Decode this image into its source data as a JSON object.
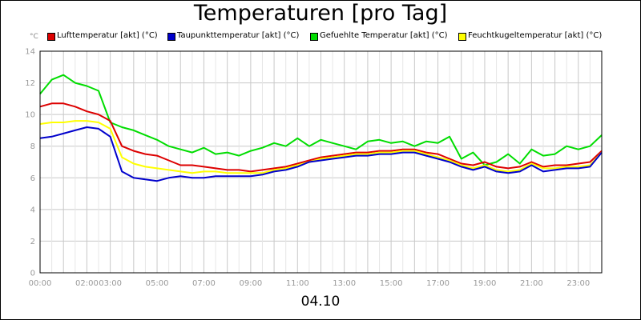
{
  "title": "Temperaturen [pro Tag]",
  "unit_label": "°C",
  "x_caption": "04.10",
  "chart_data": {
    "type": "line",
    "title": "Temperaturen [pro Tag]",
    "xlabel": "04.10",
    "ylabel": "°C",
    "ylim": [
      0,
      14
    ],
    "xlim": [
      0,
      24
    ],
    "grid": true,
    "legend_position": "top",
    "y_ticks": [
      "0",
      "2",
      "4",
      "6",
      "8",
      "10",
      "12",
      "14"
    ],
    "x_ticks": [
      {
        "x": 0,
        "label": "00:00"
      },
      {
        "x": 2,
        "label": "02:00"
      },
      {
        "x": 3,
        "label": "03:00"
      },
      {
        "x": 5,
        "label": "05:00"
      },
      {
        "x": 7,
        "label": "07:00"
      },
      {
        "x": 9,
        "label": "09:00"
      },
      {
        "x": 11,
        "label": "11:00"
      },
      {
        "x": 13,
        "label": "13:00"
      },
      {
        "x": 15,
        "label": "15:00"
      },
      {
        "x": 17,
        "label": "17:00"
      },
      {
        "x": 19,
        "label": "19:00"
      },
      {
        "x": 21,
        "label": "21:00"
      },
      {
        "x": 23,
        "label": "23:00"
      }
    ],
    "x": [
      0,
      0.5,
      1,
      1.5,
      2,
      2.5,
      3,
      3.5,
      4,
      4.5,
      5,
      5.5,
      6,
      6.5,
      7,
      7.5,
      8,
      8.5,
      9,
      9.5,
      10,
      10.5,
      11,
      11.5,
      12,
      12.5,
      13,
      13.5,
      14,
      14.5,
      15,
      15.5,
      16,
      16.5,
      17,
      17.5,
      18,
      18.5,
      19,
      19.5,
      20,
      20.5,
      21,
      21.5,
      22,
      22.5,
      23,
      23.5,
      24
    ],
    "series": [
      {
        "name": "Lufttemperatur [akt] (°C)",
        "color": "#dd0000",
        "values": [
          10.5,
          10.7,
          10.7,
          10.5,
          10.2,
          10.0,
          9.6,
          8.0,
          7.7,
          7.5,
          7.4,
          7.1,
          6.8,
          6.8,
          6.7,
          6.6,
          6.5,
          6.5,
          6.4,
          6.5,
          6.6,
          6.7,
          6.9,
          7.1,
          7.3,
          7.4,
          7.5,
          7.6,
          7.6,
          7.7,
          7.7,
          7.8,
          7.8,
          7.6,
          7.5,
          7.2,
          6.9,
          6.8,
          7.0,
          6.7,
          6.6,
          6.7,
          7.0,
          6.7,
          6.8,
          6.8,
          6.9,
          7.0,
          7.7
        ]
      },
      {
        "name": "Taupunkttemperatur [akt] (°C)",
        "color": "#0000cc",
        "values": [
          8.5,
          8.6,
          8.8,
          9.0,
          9.2,
          9.1,
          8.6,
          6.4,
          6.0,
          5.9,
          5.8,
          6.0,
          6.1,
          6.0,
          6.0,
          6.1,
          6.1,
          6.1,
          6.1,
          6.2,
          6.4,
          6.5,
          6.7,
          7.0,
          7.1,
          7.2,
          7.3,
          7.4,
          7.4,
          7.5,
          7.5,
          7.6,
          7.6,
          7.4,
          7.2,
          7.0,
          6.7,
          6.5,
          6.7,
          6.4,
          6.3,
          6.4,
          6.8,
          6.4,
          6.5,
          6.6,
          6.6,
          6.7,
          7.6
        ]
      },
      {
        "name": "Gefuehlte Temperatur [akt] (°C)",
        "color": "#00dd00",
        "values": [
          11.3,
          12.2,
          12.5,
          12.0,
          11.8,
          11.5,
          9.5,
          9.2,
          9.0,
          8.7,
          8.4,
          8.0,
          7.8,
          7.6,
          7.9,
          7.5,
          7.6,
          7.4,
          7.7,
          7.9,
          8.2,
          8.0,
          8.5,
          8.0,
          8.4,
          8.2,
          8.0,
          7.8,
          8.3,
          8.4,
          8.2,
          8.3,
          8.0,
          8.3,
          8.2,
          8.6,
          7.2,
          7.6,
          6.8,
          7.0,
          7.5,
          6.9,
          7.8,
          7.4,
          7.5,
          8.0,
          7.8,
          8.0,
          8.7
        ]
      },
      {
        "name": "Feuchtkugeltemperatur [akt] (°C)",
        "color": "#ffff00",
        "values": [
          9.4,
          9.5,
          9.5,
          9.6,
          9.6,
          9.5,
          9.1,
          7.3,
          6.9,
          6.7,
          6.6,
          6.5,
          6.4,
          6.3,
          6.4,
          6.4,
          6.3,
          6.3,
          6.3,
          6.3,
          6.5,
          6.6,
          6.8,
          7.0,
          7.2,
          7.3,
          7.4,
          7.5,
          7.5,
          7.6,
          7.6,
          7.7,
          7.7,
          7.5,
          7.3,
          7.1,
          6.8,
          6.6,
          6.8,
          6.5,
          6.4,
          6.5,
          6.9,
          6.6,
          6.6,
          6.7,
          6.7,
          6.8,
          7.6
        ]
      }
    ]
  }
}
